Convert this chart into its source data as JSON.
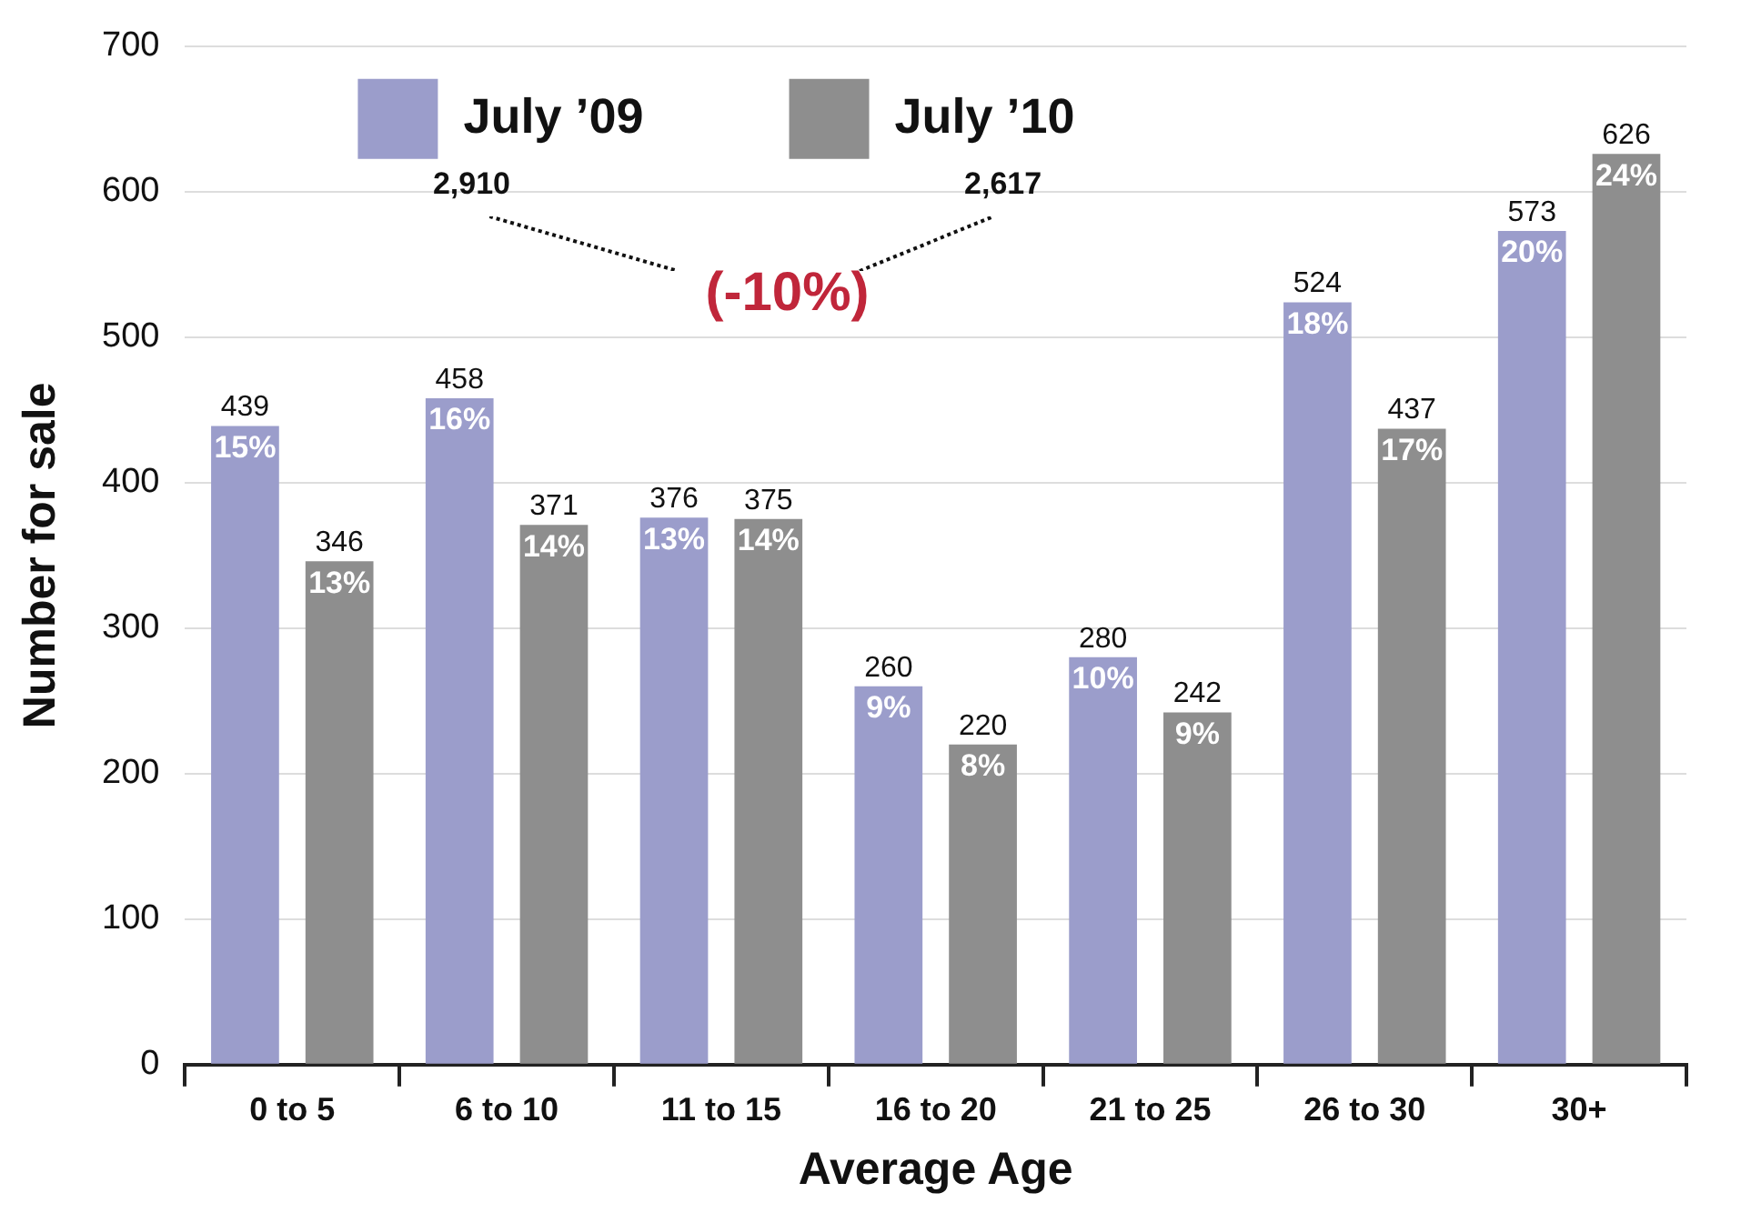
{
  "chart_data": {
    "type": "bar",
    "xlabel": "Average Age",
    "ylabel": "Number for sale",
    "categories": [
      "0 to 5",
      "6 to 10",
      "11 to 15",
      "16 to 20",
      "21 to 25",
      "26 to 30",
      "30+"
    ],
    "series": [
      {
        "name": "July ’09",
        "color": "#9b9dcb",
        "values": [
          439,
          458,
          376,
          260,
          280,
          524,
          573
        ]
      },
      {
        "name": "July ’10",
        "color": "#8e8e8e",
        "values": [
          346,
          371,
          375,
          220,
          242,
          437,
          626
        ]
      }
    ],
    "ylim": [
      0,
      700
    ],
    "yticks": [
      0,
      100,
      200,
      300,
      400,
      500,
      600,
      700
    ],
    "grid": "y",
    "legend": "top left",
    "data_labels": true,
    "annotations": [
      "2,910",
      "2,617",
      "(-10%)",
      "15%",
      "16%",
      "13%",
      "9%",
      "10%",
      "18%",
      "20%",
      "13%",
      "14%",
      "14%",
      "8%",
      "9%",
      "17%",
      "24%"
    ]
  }
}
